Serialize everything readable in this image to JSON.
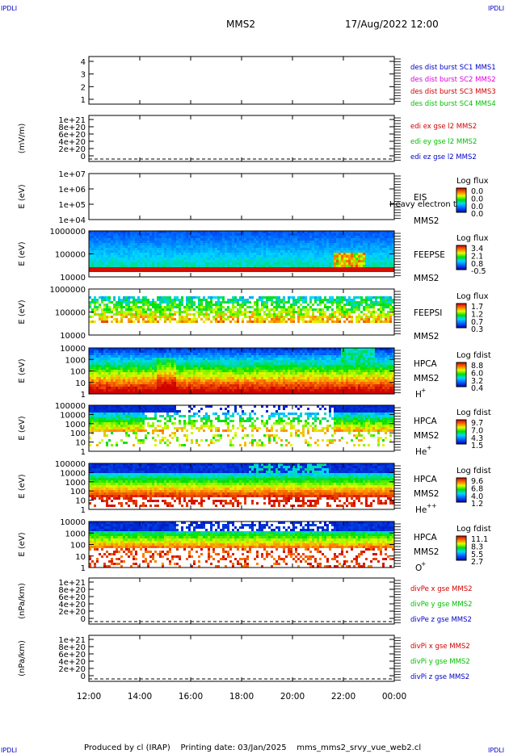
{
  "corner_tag": "IPDLI",
  "header": {
    "spacecraft": "MMS2",
    "datetime": "17/Aug/2022 12:00"
  },
  "footer": "Produced by cl (IRAP)    Printing date: 03/Jan/2025    mms_mms2_srvy_vue_web2.cl",
  "time_axis": {
    "ticks": [
      "12:00",
      "14:00",
      "16:00",
      "18:00",
      "20:00",
      "22:00",
      "00:00"
    ]
  },
  "colors": {
    "blue": "#0000c8",
    "magenta": "#e000e0",
    "red": "#d00000",
    "green": "#00c000"
  },
  "chart_data": [
    {
      "type": "line",
      "panel": "des_dist",
      "ylabel": "",
      "yticks": [
        "4",
        "3",
        "2",
        "1"
      ],
      "legend": [
        "des dist burst SC1 MMS1",
        "des dist burst SC2 MMS2",
        "des dist burst SC3 MMS3",
        "des dist burst SC4 MMS4"
      ],
      "legend_colors": [
        "#0000c8",
        "#e000e0",
        "#d00000",
        "#00c000"
      ]
    },
    {
      "type": "line",
      "panel": "edi_e",
      "ylabel": "(mV/m)",
      "yticks": [
        "1e+21",
        "8e+20",
        "6e+20",
        "4e+20",
        "2e+20",
        "0"
      ],
      "dashed_zero": true,
      "legend": [
        "edi ex gse l2 MMS2",
        "edi ey gse l2 MMS2",
        "edi ez gse l2 MMS2"
      ],
      "legend_colors": [
        "#d00000",
        "#00c000",
        "#0000c8"
      ]
    },
    {
      "type": "heatmap",
      "panel": "eis",
      "ylabel": "E (eV)",
      "yticks": [
        "1e+07",
        "1e+06",
        "1e+05",
        "1e+04"
      ],
      "labels": [
        "EIS",
        "MMS2"
      ],
      "overlay": "Heavy electron to",
      "colorbar": {
        "title": "Log flux",
        "ticks": [
          "0.0",
          "0.0",
          "0.0",
          "0.0"
        ]
      },
      "empty": true
    },
    {
      "type": "heatmap",
      "panel": "feepse",
      "ylabel": "E (eV)",
      "yticks": [
        "1000000",
        "100000",
        "10000"
      ],
      "labels": [
        "FEEPSE",
        "MMS2"
      ],
      "colorbar": {
        "title": "Log flux",
        "ticks": [
          "3.4",
          "2.1",
          "0.8",
          "-0.5"
        ]
      }
    },
    {
      "type": "heatmap",
      "panel": "feepsi",
      "ylabel": "E (eV)",
      "yticks": [
        "1000000",
        "100000",
        "10000"
      ],
      "labels": [
        "FEEPSI",
        "MMS2"
      ],
      "colorbar": {
        "title": "Log flux",
        "ticks": [
          "1.7",
          "1.2",
          "0.7",
          "0.3"
        ]
      }
    },
    {
      "type": "heatmap",
      "panel": "hpca_h",
      "ylabel": "E (eV)",
      "yticks": [
        "10000",
        "1000",
        "100",
        "10",
        "1"
      ],
      "labels": [
        "HPCA",
        "MMS2",
        "H",
        "+"
      ],
      "colorbar": {
        "title": "Log fdist",
        "ticks": [
          "8.8",
          "6.0",
          "3.2",
          "0.4"
        ]
      }
    },
    {
      "type": "heatmap",
      "panel": "hpca_he",
      "ylabel": "E (eV)",
      "yticks": [
        "100000",
        "10000",
        "1000",
        "100",
        "10",
        "1"
      ],
      "labels": [
        "HPCA",
        "MMS2",
        "He",
        "+"
      ],
      "colorbar": {
        "title": "Log fdist",
        "ticks": [
          "9.7",
          "7.0",
          "4.3",
          "1.5"
        ]
      }
    },
    {
      "type": "heatmap",
      "panel": "hpca_hepp",
      "ylabel": "E (eV)",
      "yticks": [
        "100000",
        "10000",
        "1000",
        "100",
        "10",
        "1"
      ],
      "labels": [
        "HPCA",
        "MMS2",
        "He",
        "++"
      ],
      "colorbar": {
        "title": "Log fdist",
        "ticks": [
          "9.6",
          "6.8",
          "4.0",
          "1.2"
        ]
      }
    },
    {
      "type": "heatmap",
      "panel": "hpca_o",
      "ylabel": "E (eV)",
      "yticks": [
        "10000",
        "1000",
        "100",
        "10",
        "1"
      ],
      "labels": [
        "HPCA",
        "MMS2",
        "O",
        "+"
      ],
      "colorbar": {
        "title": "Log fdist",
        "ticks": [
          "11.1",
          "8.3",
          "5.5",
          "2.7"
        ]
      }
    },
    {
      "type": "line",
      "panel": "divpe",
      "ylabel": "(nPa/km)",
      "yticks": [
        "1e+21",
        "8e+20",
        "6e+20",
        "4e+20",
        "2e+20",
        "0"
      ],
      "dashed_zero": true,
      "legend": [
        "divPe x gse MMS2",
        "divPe y gse MMS2",
        "divPe z gse MMS2"
      ],
      "legend_colors": [
        "#d00000",
        "#00c000",
        "#0000c8"
      ]
    },
    {
      "type": "line",
      "panel": "divpi",
      "ylabel": "(nPa/km)",
      "yticks": [
        "1e+21",
        "8e+20",
        "6e+20",
        "4e+20",
        "2e+20",
        "0"
      ],
      "dashed_zero": true,
      "legend": [
        "divPi x gse MMS2",
        "divPi y gse MMS2",
        "divPi z gse MMS2"
      ],
      "legend_colors": [
        "#d00000",
        "#00c000",
        "#0000c8"
      ]
    }
  ]
}
